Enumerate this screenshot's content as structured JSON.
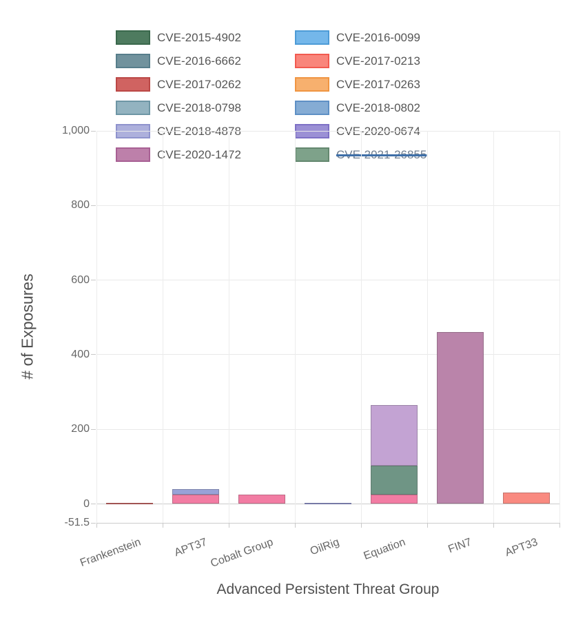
{
  "legend": {
    "items": [
      {
        "label": "CVE-2015-4902",
        "fill": "#4e7b5f",
        "border": "#3a684c",
        "hidden": false
      },
      {
        "label": "CVE-2016-0099",
        "fill": "#74b7ea",
        "border": "#4d9bd6",
        "hidden": false
      },
      {
        "label": "CVE-2016-6662",
        "fill": "#71929d",
        "border": "#577e8b",
        "hidden": false
      },
      {
        "label": "CVE-2017-0213",
        "fill": "#f9857b",
        "border": "#f25a50",
        "hidden": false
      },
      {
        "label": "CVE-2017-0262",
        "fill": "#d06361",
        "border": "#bb4846",
        "hidden": false
      },
      {
        "label": "CVE-2017-0263",
        "fill": "#f7b06e",
        "border": "#f09542",
        "hidden": false
      },
      {
        "label": "CVE-2018-0798",
        "fill": "#93b3c0",
        "border": "#6e96a5",
        "hidden": false
      },
      {
        "label": "CVE-2018-0802",
        "fill": "#85acd4",
        "border": "#5e90c5",
        "hidden": false
      },
      {
        "label": "CVE-2018-4878",
        "fill": "#adb0dc",
        "border": "#8f93cd",
        "hidden": false
      },
      {
        "label": "CVE-2020-0674",
        "fill": "#9b90d5",
        "border": "#7e70c5",
        "hidden": false
      },
      {
        "label": "CVE-2020-1472",
        "fill": "#bd80aa",
        "border": "#a86094",
        "hidden": false
      },
      {
        "label": "CVE-2021-26855",
        "fill": "#7ea28a",
        "border": "#64886f",
        "hidden": true
      }
    ]
  },
  "chart_data": {
    "type": "bar",
    "stacked": true,
    "grid": true,
    "legend_position": "top",
    "xlabel": "Advanced Persistent Threat Group",
    "ylabel": "# of Exposures",
    "ylim": [
      -51.5,
      1000
    ],
    "categories": [
      "Frankenstein",
      "APT37",
      "Cobalt Group",
      "OilRig",
      "Equation",
      "FIN7",
      "APT33"
    ],
    "y_axis": {
      "ticks": [
        {
          "label": "1,000",
          "value": 1000
        },
        {
          "label": "800",
          "value": 800
        },
        {
          "label": "600",
          "value": 600
        },
        {
          "label": "400",
          "value": 400
        },
        {
          "label": "200",
          "value": 200
        },
        {
          "label": "0",
          "value": 0
        },
        {
          "label": "-51.5",
          "value": -51.5
        }
      ]
    },
    "bars": [
      {
        "category": "Frankenstein",
        "total": 3,
        "segments": [
          {
            "cve": "CVE-2017-0262",
            "value": 3,
            "fill": "#cb605f"
          }
        ]
      },
      {
        "category": "APT37",
        "total": 40,
        "segments": [
          {
            "cve": "CVE-2017-0213",
            "value": 25,
            "fill": "#f27ca3"
          },
          {
            "cve": "CVE-2018-4878",
            "value": 15,
            "fill": "#99a2d8"
          }
        ]
      },
      {
        "category": "Cobalt Group",
        "total": 25,
        "segments": [
          {
            "cve": "CVE-2017-0213",
            "value": 25,
            "fill": "#f27ca3"
          }
        ]
      },
      {
        "category": "OilRig",
        "total": 2,
        "segments": [
          {
            "cve": "CVE-2020-0674",
            "value": 2,
            "fill": "#8f93d2"
          }
        ]
      },
      {
        "category": "Equation",
        "total": 265,
        "segments": [
          {
            "cve": "CVE-2017-0213",
            "value": 25,
            "fill": "#f27ca3"
          },
          {
            "cve": "CVE-2015-4902",
            "value": 78,
            "fill": "#6f9585"
          },
          {
            "cve": "CVE-2018-4878",
            "value": 162,
            "fill": "#c3a3d3"
          }
        ]
      },
      {
        "category": "FIN7",
        "total": 460,
        "segments": [
          {
            "cve": "CVE-2020-1472",
            "value": 460,
            "fill": "#ba84aa"
          }
        ]
      },
      {
        "category": "APT33",
        "total": 30,
        "segments": [
          {
            "cve": "CVE-2017-0213",
            "value": 30,
            "fill": "#f98a80"
          }
        ]
      }
    ]
  }
}
